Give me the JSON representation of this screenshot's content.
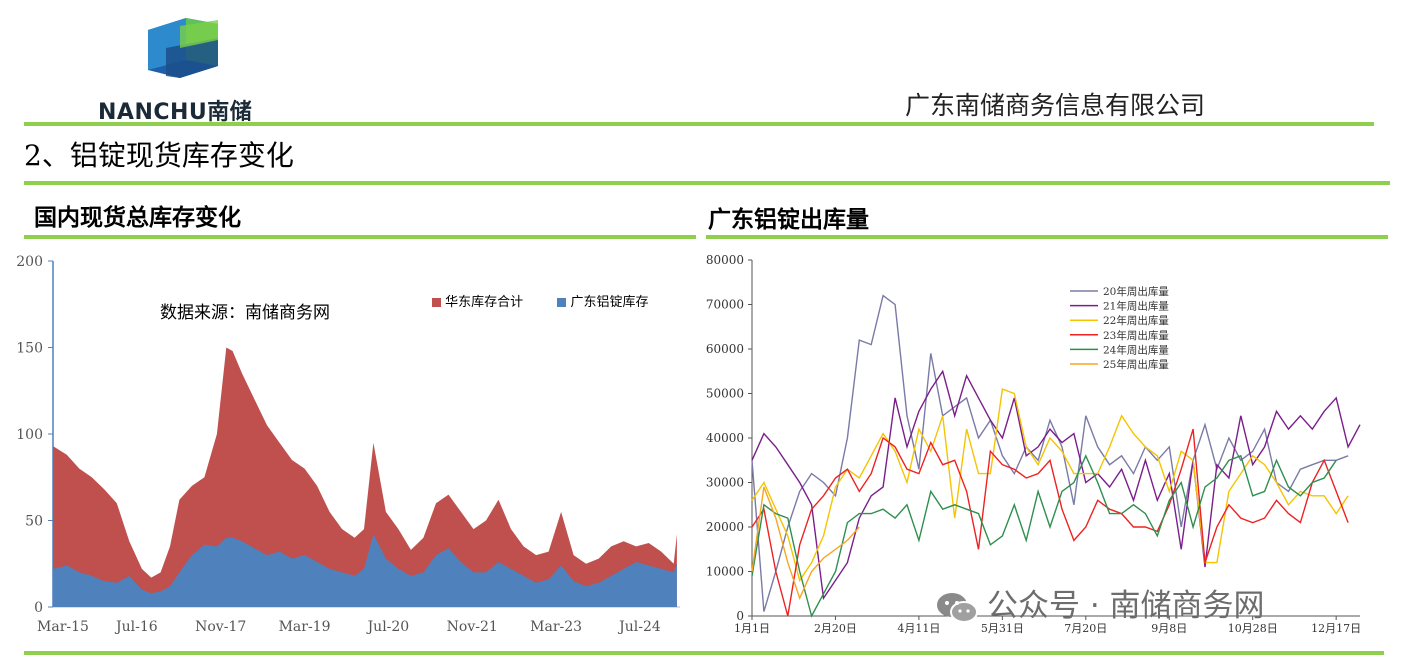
{
  "header": {
    "logo_text": "NANCHU南储",
    "company": "广东南储商务信息有限公司",
    "section_title": "2、铝锭现货库存变化"
  },
  "watermark": "公众号 · 南储商务网",
  "colors": {
    "accent_green": "#8ecf4e",
    "east_china": "#c0504d",
    "guangdong": "#4f81bd"
  },
  "chart_data": [
    {
      "type": "area",
      "title": "国内现货总库存变化",
      "annotation": "数据来源：南储商务网",
      "ylim": [
        0,
        200
      ],
      "yticks": [
        0,
        50,
        100,
        150,
        200
      ],
      "xtick_labels": [
        "Mar-15",
        "Jul-16",
        "Nov-17",
        "Mar-19",
        "Jul-20",
        "Nov-21",
        "Mar-23",
        "Jul-24"
      ],
      "x": [
        2015.08,
        2015.3,
        2015.5,
        2015.7,
        2015.9,
        2016.1,
        2016.3,
        2016.5,
        2016.65,
        2016.8,
        2016.95,
        2017.1,
        2017.3,
        2017.5,
        2017.7,
        2017.85,
        2017.95,
        2018.1,
        2018.3,
        2018.5,
        2018.7,
        2018.9,
        2019.1,
        2019.3,
        2019.5,
        2019.7,
        2019.9,
        2020.05,
        2020.2,
        2020.4,
        2020.6,
        2020.8,
        2021.0,
        2021.2,
        2021.4,
        2021.6,
        2021.8,
        2022.0,
        2022.2,
        2022.4,
        2022.6,
        2022.8,
        2023.0,
        2023.2,
        2023.4,
        2023.6,
        2023.8,
        2024.0,
        2024.2,
        2024.4,
        2024.6,
        2024.8,
        2025.0,
        2025.05
      ],
      "series": [
        {
          "name": "华东库存合计",
          "values": [
            93,
            88,
            80,
            75,
            68,
            60,
            38,
            22,
            17,
            20,
            35,
            62,
            70,
            75,
            100,
            150,
            148,
            135,
            120,
            105,
            95,
            85,
            80,
            70,
            55,
            45,
            40,
            45,
            95,
            55,
            45,
            33,
            40,
            60,
            65,
            55,
            45,
            50,
            62,
            45,
            35,
            30,
            32,
            55,
            30,
            25,
            28,
            35,
            38,
            35,
            37,
            32,
            25,
            42
          ]
        },
        {
          "name": "广东铝锭库存",
          "values": [
            22,
            24,
            20,
            18,
            15,
            14,
            18,
            10,
            8,
            9,
            12,
            20,
            30,
            36,
            35,
            40,
            40,
            38,
            34,
            30,
            32,
            28,
            30,
            26,
            22,
            20,
            18,
            22,
            42,
            28,
            22,
            18,
            20,
            30,
            34,
            26,
            20,
            20,
            26,
            22,
            18,
            14,
            16,
            24,
            15,
            12,
            14,
            18,
            22,
            26,
            24,
            22,
            20,
            25
          ]
        }
      ]
    },
    {
      "type": "line",
      "title": "广东铝锭出库量",
      "ylim": [
        0,
        80000
      ],
      "yticks": [
        0,
        10000,
        20000,
        30000,
        40000,
        50000,
        60000,
        70000,
        80000
      ],
      "xtick_labels": [
        "1月1日",
        "2月20日",
        "4月11日",
        "5月31日",
        "7月20日",
        "9月8日",
        "10月28日",
        "12月17日"
      ],
      "x_range_weeks": [
        0,
        51
      ],
      "series": [
        {
          "name": "20年周出库量",
          "color": "#7a7aa8",
          "values": [
            35000,
            1000,
            10000,
            20000,
            28000,
            32000,
            30000,
            27000,
            40000,
            62000,
            61000,
            72000,
            70000,
            45000,
            33000,
            59000,
            45000,
            47000,
            49000,
            40000,
            44000,
            36000,
            32000,
            38000,
            35000,
            44000,
            38000,
            25000,
            45000,
            38000,
            34000,
            36000,
            32000,
            38000,
            35000,
            38000,
            20000,
            35000,
            43000,
            33000,
            40000,
            35000,
            37000,
            42000,
            30000,
            28000,
            33000,
            34000,
            35000,
            35000,
            36000
          ]
        },
        {
          "name": "21年周出库量",
          "color": "#7b1e8c",
          "values": [
            35000,
            41000,
            38000,
            34000,
            30000,
            25000,
            4000,
            8000,
            12000,
            22000,
            27000,
            29000,
            49000,
            38000,
            46000,
            51000,
            55000,
            45000,
            54000,
            49000,
            44000,
            40000,
            49000,
            36000,
            38000,
            42000,
            39000,
            41000,
            30000,
            32000,
            29000,
            33000,
            26000,
            35000,
            26000,
            32000,
            15000,
            35000,
            11000,
            34000,
            31000,
            45000,
            34000,
            38000,
            46000,
            42000,
            45000,
            42000,
            46000,
            49000,
            38000,
            43000
          ]
        },
        {
          "name": "22年周出库量",
          "color": "#f5c400",
          "values": [
            26000,
            30000,
            24000,
            18000,
            8000,
            12000,
            18000,
            29000,
            33000,
            31000,
            36000,
            41000,
            37000,
            30000,
            42000,
            37000,
            45000,
            22000,
            42000,
            32000,
            32000,
            51000,
            50000,
            38000,
            34000,
            40000,
            37000,
            32000,
            32000,
            32000,
            38000,
            45000,
            41000,
            38000,
            36000,
            28000,
            37000,
            35000,
            12000,
            12000,
            28000,
            32000,
            36000,
            34000,
            30000,
            25000,
            28000,
            27000,
            27000,
            23000,
            27000
          ]
        },
        {
          "name": "23年周出库量",
          "color": "#ee2222",
          "values": [
            20000,
            24000,
            10000,
            0,
            16000,
            24000,
            27000,
            31000,
            33000,
            28000,
            32000,
            40000,
            38000,
            33000,
            32000,
            39000,
            34000,
            35000,
            28000,
            15000,
            37000,
            34000,
            33000,
            31000,
            32000,
            35000,
            24000,
            17000,
            20000,
            26000,
            24000,
            23000,
            20000,
            20000,
            19000,
            25000,
            33000,
            42000,
            12000,
            20000,
            25000,
            22000,
            21000,
            22000,
            26000,
            23000,
            21000,
            30000,
            35000,
            28000,
            21000
          ]
        },
        {
          "name": "24年周出库量",
          "color": "#2f8f4e",
          "values": [
            9000,
            25000,
            23000,
            22000,
            10000,
            0,
            5000,
            10000,
            21000,
            23000,
            23000,
            24000,
            22000,
            25000,
            17000,
            28000,
            24000,
            25000,
            24000,
            23000,
            16000,
            18000,
            25000,
            17000,
            28000,
            20000,
            28000,
            30000,
            36000,
            30000,
            23000,
            23000,
            25000,
            23000,
            18000,
            26000,
            30000,
            20000,
            29000,
            31000,
            35000,
            36000,
            27000,
            28000,
            35000,
            29000,
            27000,
            30000,
            31000,
            35000
          ]
        },
        {
          "name": "25年周出库量",
          "color": "#f5a623",
          "values": [
            10000,
            29000,
            22000,
            12000,
            4000,
            10000,
            13000,
            15000,
            17000,
            20000
          ]
        }
      ]
    }
  ]
}
